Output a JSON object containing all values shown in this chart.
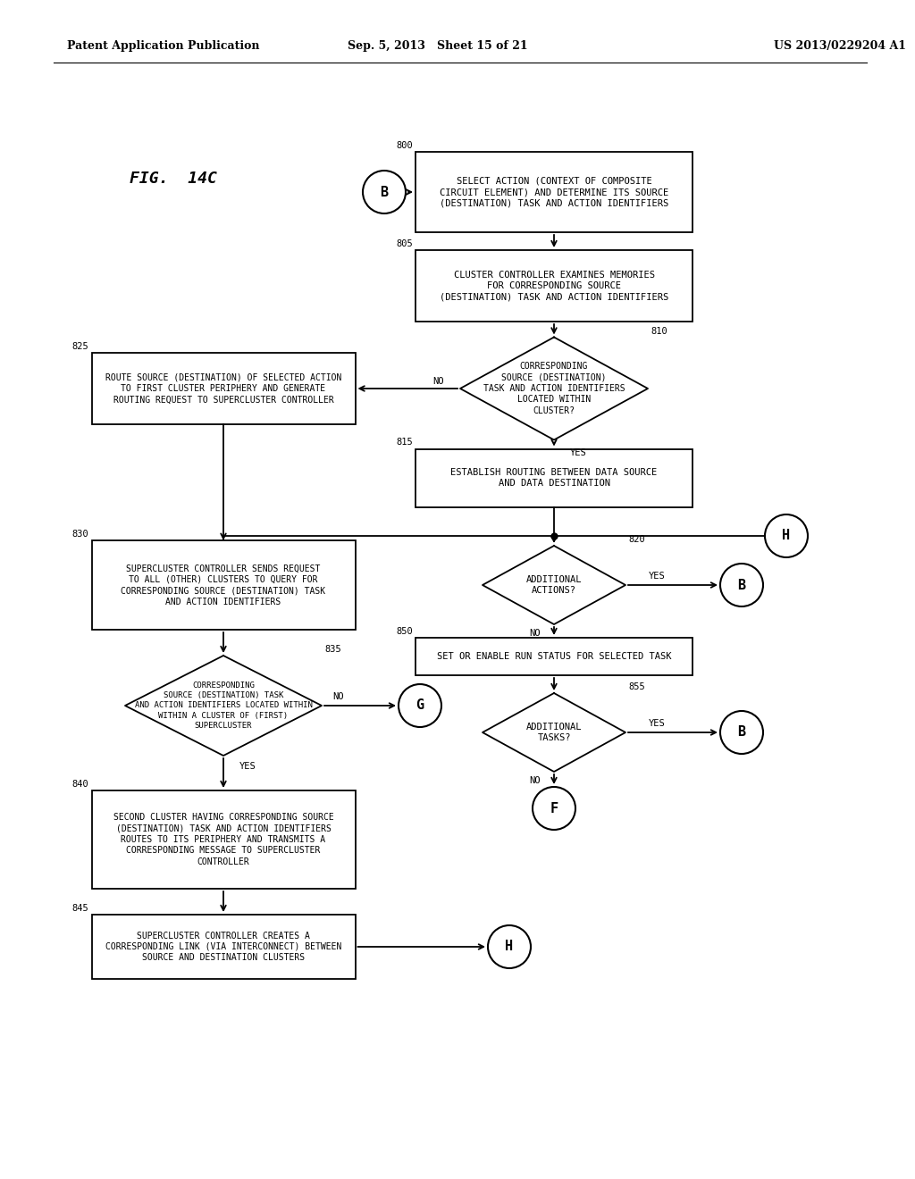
{
  "header_left": "Patent Application Publication",
  "header_center": "Sep. 5, 2013   Sheet 15 of 21",
  "header_right": "US 2013/0229204 A1",
  "fig_label": "FIG.  14C",
  "bg_color": "#ffffff",
  "lc": "#000000"
}
